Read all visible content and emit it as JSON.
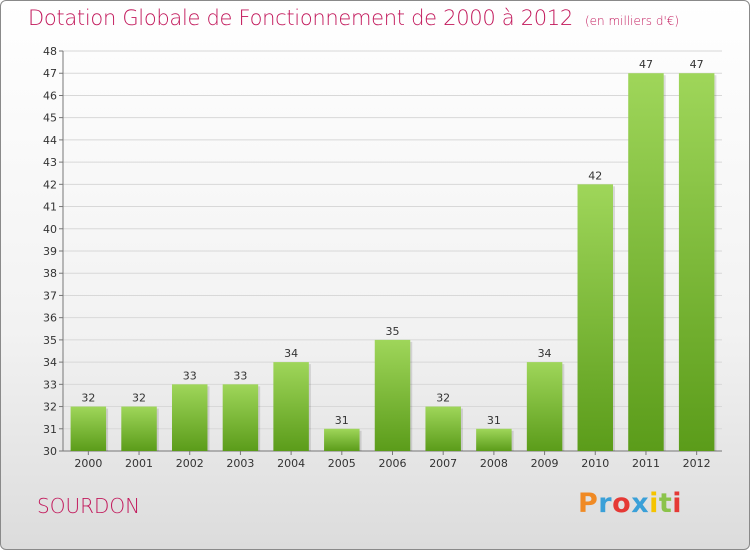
{
  "title": "Dotation Globale de Fonctionnement de 2000 à 2012",
  "subtitle": "(en milliers d'€)",
  "commune": "SOURDON",
  "logo": {
    "text": "Proxiti",
    "colors": [
      "#f08a24",
      "#3aa0d8",
      "#e53935",
      "#3aa0d8",
      "#f5c400",
      "#8bc34a",
      "#e53935"
    ]
  },
  "colors": {
    "title": "#c2185b",
    "bar_top": "#9fd65a",
    "bar_bottom": "#5b9c1a",
    "grid": "#d8d8d8"
  },
  "chart_data": {
    "type": "bar",
    "categories": [
      "2000",
      "2001",
      "2002",
      "2003",
      "2004",
      "2005",
      "2006",
      "2007",
      "2008",
      "2009",
      "2010",
      "2011",
      "2012"
    ],
    "values": [
      32,
      32,
      33,
      33,
      34,
      31,
      35,
      32,
      31,
      34,
      42,
      47,
      47
    ],
    "ylim": [
      30,
      48
    ],
    "yticks": [
      30,
      31,
      32,
      33,
      34,
      35,
      36,
      37,
      38,
      39,
      40,
      41,
      42,
      43,
      44,
      45,
      46,
      47,
      48
    ],
    "grid": true,
    "xlabel": "",
    "ylabel": ""
  }
}
